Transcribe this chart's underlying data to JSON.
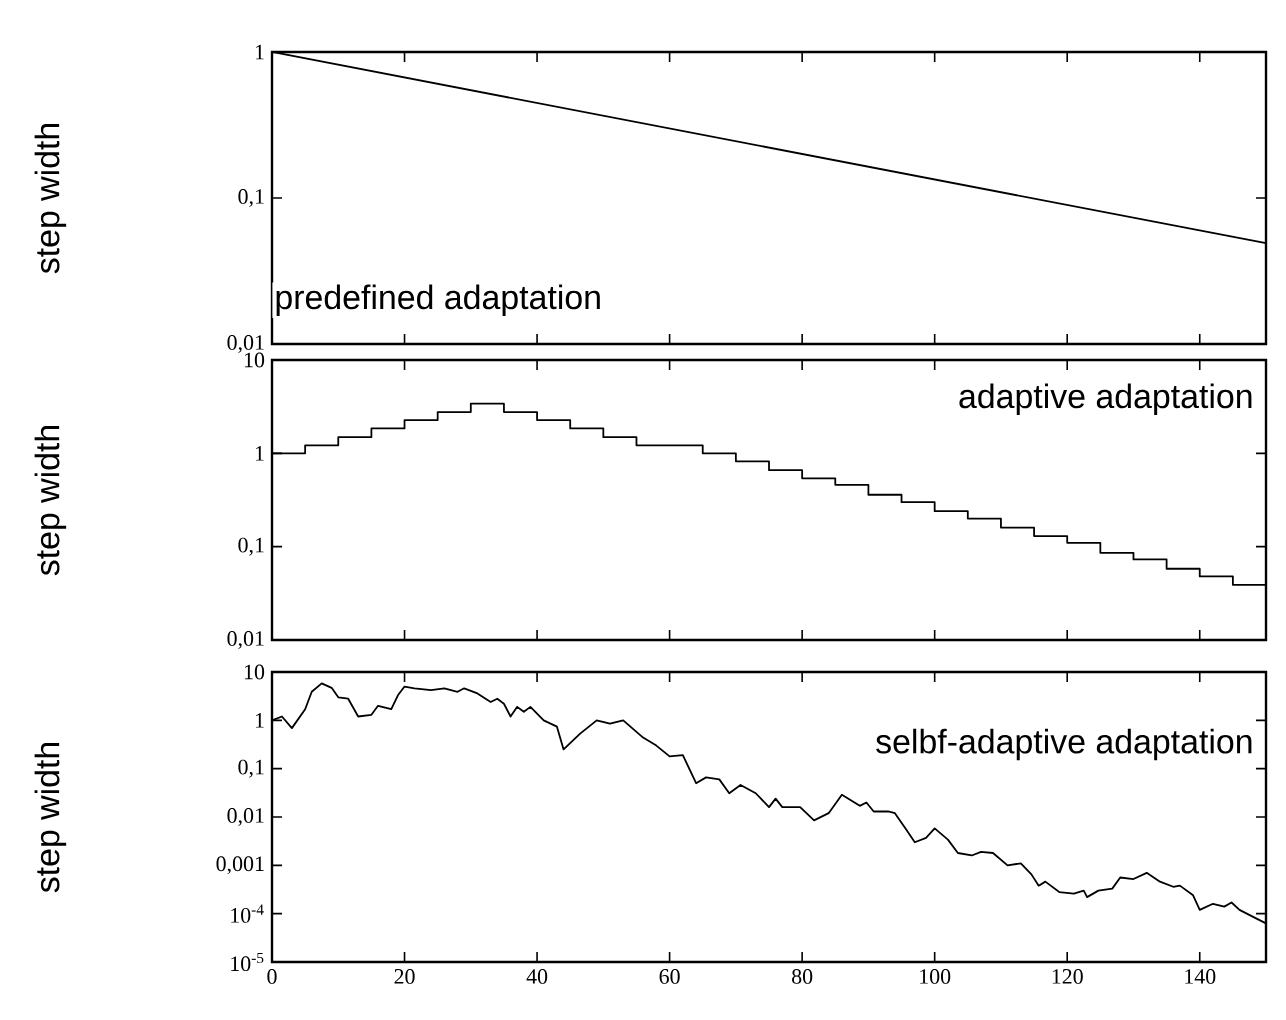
{
  "chart_data": [
    {
      "type": "line",
      "ylabel": "step width",
      "log": true,
      "tick_labels": "y",
      "annotations": [
        "predefined adaptation"
      ],
      "xlim": [
        0,
        150
      ],
      "ylim": [
        0.01,
        1
      ],
      "xticks": [
        0,
        20,
        40,
        60,
        80,
        100,
        120,
        140
      ],
      "yticks": [
        1,
        {
          "value": 0.1,
          "label": "0,1"
        },
        {
          "value": 0.01,
          "label": "0,01"
        }
      ],
      "color": "#000000",
      "x": [
        0,
        150
      ],
      "values": [
        1,
        0.049
      ]
    },
    {
      "type": "step",
      "ylabel": "step width",
      "log": true,
      "tick_labels": "y",
      "annotations": [
        "adaptive adaptation"
      ],
      "xlim": [
        0,
        150
      ],
      "ylim": [
        0.01,
        10
      ],
      "xticks": [
        0,
        20,
        40,
        60,
        80,
        100,
        120,
        140
      ],
      "yticks": [
        10,
        1,
        {
          "value": 0.1,
          "label": "0,1"
        },
        {
          "value": 0.01,
          "label": "0,01"
        }
      ],
      "color": "#000000",
      "x": [
        0,
        5,
        10,
        15,
        20,
        25,
        30,
        35,
        40,
        45,
        50,
        55,
        65,
        70,
        75,
        80,
        85,
        90,
        95,
        100,
        105,
        110,
        115,
        120,
        125,
        130,
        135,
        140,
        145,
        150
      ],
      "values": [
        1.0,
        1.22,
        1.49,
        1.85,
        2.27,
        2.77,
        3.4,
        2.77,
        2.27,
        1.85,
        1.49,
        1.22,
        1.0,
        0.82,
        0.66,
        0.54,
        0.46,
        0.36,
        0.3,
        0.24,
        0.2,
        0.16,
        0.13,
        0.11,
        0.086,
        0.073,
        0.058,
        0.048,
        0.039,
        0.039
      ]
    },
    {
      "type": "line",
      "ylabel": "step width",
      "log": true,
      "annotations": [
        "selbf-adaptive adaptation"
      ],
      "xlim": [
        0,
        150
      ],
      "ylim": [
        1e-05,
        10
      ],
      "xticks": [
        0,
        20,
        40,
        60,
        80,
        100,
        120,
        140
      ],
      "yticks": [
        10,
        1,
        {
          "value": 0.1,
          "label": "0,1"
        },
        {
          "value": 0.01,
          "label": "0,01"
        },
        {
          "value": 0.001,
          "label": "0,001"
        },
        {
          "value": 0.0001,
          "label": "10$^{-4}$"
        },
        {
          "value": 1e-05,
          "label": "10$^{-5}$"
        }
      ],
      "color": "#000000",
      "x": [
        0,
        1.5,
        3,
        5,
        6,
        7.5,
        9,
        10,
        11.5,
        13,
        15,
        16,
        18,
        19,
        20,
        21.5,
        24,
        26,
        28,
        29,
        31,
        33,
        34,
        35,
        36,
        37,
        38,
        39,
        41,
        43,
        44,
        46.5,
        49,
        51,
        53,
        56,
        58,
        60,
        62,
        64,
        65.5,
        67.5,
        69,
        70.7,
        73,
        75,
        76,
        77,
        79.7,
        81.8,
        84,
        86,
        88.7,
        89.7,
        90.8,
        93,
        94,
        95.6,
        97,
        98.7,
        100,
        102,
        103.5,
        105.6,
        107,
        108.8,
        111,
        113,
        114.6,
        115.7,
        116.7,
        118.8,
        121,
        122.5,
        123,
        124.7,
        126.8,
        128,
        130,
        132,
        134,
        136,
        137,
        139,
        140,
        142,
        143.7,
        144.8,
        146,
        148.5,
        150
      ],
      "values": [
        1.0,
        1.2,
        0.69,
        1.7,
        3.9,
        5.8,
        4.7,
        3,
        2.8,
        1.2,
        1.3,
        2,
        1.7,
        3.3,
        5,
        4.6,
        4.2,
        4.6,
        3.9,
        4.6,
        3.6,
        2.4,
        2.8,
        2.2,
        1.2,
        1.9,
        1.5,
        1.9,
        1.0,
        0.74,
        0.25,
        0.53,
        1.0,
        0.85,
        1.0,
        0.44,
        0.3,
        0.18,
        0.19,
        0.05,
        0.066,
        0.06,
        0.031,
        0.046,
        0.031,
        0.016,
        0.024,
        0.016,
        0.016,
        0.0085,
        0.012,
        0.029,
        0.017,
        0.02,
        0.013,
        0.013,
        0.012,
        0.0058,
        0.003,
        0.0037,
        0.0058,
        0.0034,
        0.0018,
        0.0016,
        0.0019,
        0.0018,
        0.001,
        0.0011,
        0.00065,
        0.00038,
        0.00046,
        0.00028,
        0.00026,
        0.0003,
        0.00022,
        0.0003,
        0.00033,
        0.00056,
        0.00052,
        0.0007,
        0.00046,
        0.00036,
        0.00038,
        0.00024,
        0.00012,
        0.00016,
        0.00014,
        0.00017,
        0.00012,
        8e-05,
        6.3e-05
      ]
    }
  ]
}
